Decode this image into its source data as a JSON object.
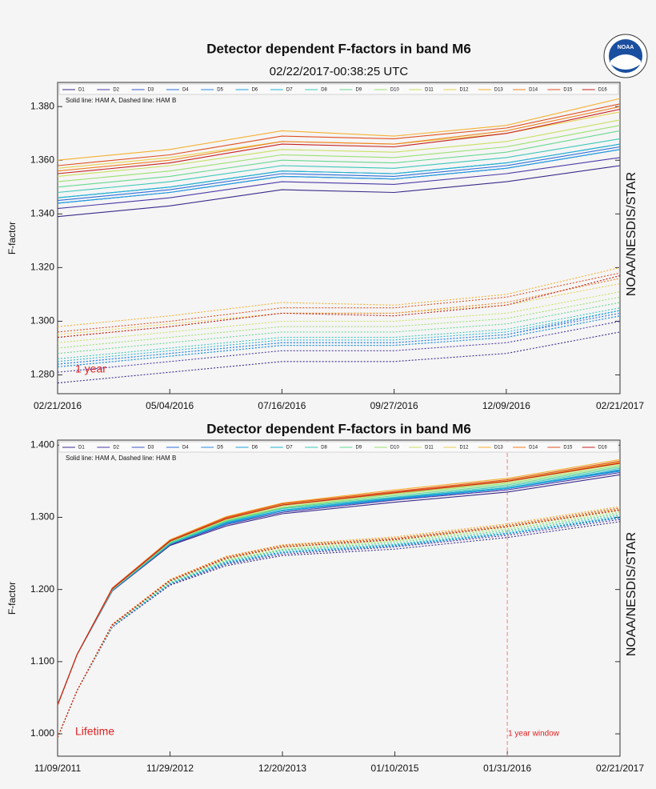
{
  "logo": "NOAA",
  "chart_data": [
    {
      "type": "line",
      "title": "Detector dependent F-factors in band M6",
      "subtitle": "02/22/2017-00:38:25 UTC",
      "ylabel": "F-factor",
      "side_label": "NOAA/NESDIS/STAR",
      "legend_note": "Solid line: HAM A, Dashed line: HAM B",
      "annotation": "1 year",
      "annotation_color": "#e02020",
      "x": [
        "02/21/2016",
        "05/04/2016",
        "07/16/2016",
        "09/27/2016",
        "12/09/2016",
        "02/21/2017"
      ],
      "xlim": [
        "02/21/2016",
        "02/21/2017"
      ],
      "xticks": [
        "02/21/2016",
        "05/04/2016",
        "07/16/2016",
        "09/27/2016",
        "12/09/2016",
        "02/21/2017"
      ],
      "ylim": [
        1.273,
        1.389
      ],
      "yticks": [
        {
          "value": 1.28,
          "label": "1.280"
        },
        {
          "value": 1.3,
          "label": "1.300"
        },
        {
          "value": 1.32,
          "label": "1.320"
        },
        {
          "value": 1.34,
          "label": "1.340"
        },
        {
          "value": 1.36,
          "label": "1.360"
        },
        {
          "value": 1.38,
          "label": "1.380"
        }
      ],
      "series": [
        {
          "name": "D1",
          "color": "#3a2a8a",
          "ham_a": [
            1.339,
            1.343,
            1.349,
            1.348,
            1.352,
            1.358
          ],
          "ham_b": [
            1.277,
            1.281,
            1.285,
            1.285,
            1.288,
            1.296
          ]
        },
        {
          "name": "D2",
          "color": "#4b3aa8",
          "ham_a": [
            1.342,
            1.346,
            1.352,
            1.351,
            1.355,
            1.361
          ],
          "ham_b": [
            1.281,
            1.285,
            1.289,
            1.289,
            1.292,
            1.3
          ]
        },
        {
          "name": "D3",
          "color": "#3c55c8",
          "ham_a": [
            1.344,
            1.348,
            1.354,
            1.353,
            1.357,
            1.364
          ],
          "ham_b": [
            1.283,
            1.287,
            1.291,
            1.291,
            1.294,
            1.302
          ]
        },
        {
          "name": "D4",
          "color": "#2c6fdc",
          "ham_a": [
            1.345,
            1.349,
            1.355,
            1.354,
            1.358,
            1.365
          ],
          "ham_b": [
            1.284,
            1.288,
            1.292,
            1.292,
            1.295,
            1.303
          ]
        },
        {
          "name": "D5",
          "color": "#2a8ae6",
          "ham_a": [
            1.346,
            1.35,
            1.356,
            1.355,
            1.359,
            1.366
          ],
          "ham_b": [
            1.284,
            1.288,
            1.292,
            1.292,
            1.295,
            1.304
          ]
        },
        {
          "name": "D6",
          "color": "#1fa0e0",
          "ham_a": [
            1.344,
            1.348,
            1.354,
            1.353,
            1.357,
            1.364
          ],
          "ham_b": [
            1.283,
            1.287,
            1.291,
            1.291,
            1.294,
            1.302
          ]
        },
        {
          "name": "D7",
          "color": "#22b4d0",
          "ham_a": [
            1.346,
            1.35,
            1.356,
            1.355,
            1.359,
            1.366
          ],
          "ham_b": [
            1.285,
            1.289,
            1.293,
            1.293,
            1.296,
            1.304
          ]
        },
        {
          "name": "D8",
          "color": "#3cc8b8",
          "ham_a": [
            1.348,
            1.352,
            1.358,
            1.357,
            1.361,
            1.368
          ],
          "ham_b": [
            1.286,
            1.29,
            1.294,
            1.294,
            1.297,
            1.305
          ]
        },
        {
          "name": "D9",
          "color": "#66d890",
          "ham_a": [
            1.35,
            1.354,
            1.36,
            1.359,
            1.363,
            1.371
          ],
          "ham_b": [
            1.288,
            1.292,
            1.296,
            1.296,
            1.299,
            1.307
          ]
        },
        {
          "name": "D10",
          "color": "#9ae070",
          "ham_a": [
            1.352,
            1.356,
            1.362,
            1.361,
            1.365,
            1.373
          ],
          "ham_b": [
            1.29,
            1.294,
            1.298,
            1.298,
            1.301,
            1.309
          ]
        },
        {
          "name": "D11",
          "color": "#c8e060",
          "ham_a": [
            1.354,
            1.358,
            1.364,
            1.363,
            1.367,
            1.375
          ],
          "ham_b": [
            1.292,
            1.296,
            1.3,
            1.3,
            1.303,
            1.311
          ]
        },
        {
          "name": "D12",
          "color": "#e8d050",
          "ham_a": [
            1.357,
            1.361,
            1.367,
            1.366,
            1.37,
            1.378
          ],
          "ham_b": [
            1.295,
            1.299,
            1.303,
            1.303,
            1.306,
            1.314
          ]
        },
        {
          "name": "D13",
          "color": "#f5b030",
          "ham_a": [
            1.36,
            1.364,
            1.371,
            1.369,
            1.373,
            1.383
          ],
          "ham_b": [
            1.298,
            1.302,
            1.307,
            1.306,
            1.31,
            1.32
          ]
        },
        {
          "name": "D14",
          "color": "#f08020",
          "ham_a": [
            1.356,
            1.36,
            1.367,
            1.366,
            1.371,
            1.38
          ],
          "ham_b": [
            1.294,
            1.298,
            1.303,
            1.303,
            1.307,
            1.316
          ]
        },
        {
          "name": "D15",
          "color": "#e05020",
          "ham_a": [
            1.358,
            1.362,
            1.369,
            1.368,
            1.372,
            1.381
          ],
          "ham_b": [
            1.296,
            1.3,
            1.305,
            1.305,
            1.309,
            1.318
          ]
        },
        {
          "name": "D16",
          "color": "#c82020",
          "ham_a": [
            1.355,
            1.359,
            1.366,
            1.365,
            1.37,
            1.379
          ],
          "ham_b": [
            1.294,
            1.298,
            1.303,
            1.302,
            1.306,
            1.317
          ]
        }
      ]
    },
    {
      "type": "line",
      "title": "Detector dependent F-factors in band M6",
      "ylabel": "F-factor",
      "side_label": "NOAA/NESDIS/STAR",
      "legend_note": "Solid line: HAM A, Dashed line: HAM B",
      "annotation": "Lifetime",
      "annotation_color": "#e02020",
      "vline": "01/31/2016",
      "vline_label": "1 year window",
      "x": [
        "11/09/2011",
        "01/15/2012",
        "05/15/2012",
        "11/29/2012",
        "06/10/2013",
        "12/20/2013",
        "01/10/2015",
        "01/31/2016",
        "02/21/2017"
      ],
      "xlim": [
        "11/09/2011",
        "02/21/2017"
      ],
      "xticks": [
        "11/09/2011",
        "11/29/2012",
        "12/20/2013",
        "01/10/2015",
        "01/31/2016",
        "02/21/2017"
      ],
      "ylim": [
        0.969,
        1.407
      ],
      "yticks": [
        {
          "value": 1.0,
          "label": "1.000"
        },
        {
          "value": 1.1,
          "label": "1.100"
        },
        {
          "value": 1.2,
          "label": "1.200"
        },
        {
          "value": 1.3,
          "label": "1.300"
        },
        {
          "value": 1.4,
          "label": "1.400"
        }
      ],
      "series": [
        {
          "name": "D1",
          "color": "#3a2a8a",
          "ham_a": [
            1.04,
            1.11,
            1.198,
            1.261,
            1.288,
            1.305,
            1.321,
            1.335,
            1.359
          ],
          "ham_b": [
            0.995,
            1.06,
            1.148,
            1.206,
            1.233,
            1.247,
            1.256,
            1.272,
            1.294
          ]
        },
        {
          "name": "D2",
          "color": "#4b3aa8",
          "ham_a": [
            1.04,
            1.11,
            1.198,
            1.262,
            1.29,
            1.307,
            1.324,
            1.338,
            1.362
          ],
          "ham_b": [
            0.995,
            1.06,
            1.148,
            1.207,
            1.235,
            1.249,
            1.259,
            1.275,
            1.297
          ]
        },
        {
          "name": "D3",
          "color": "#3c55c8",
          "ham_a": [
            1.04,
            1.11,
            1.199,
            1.263,
            1.291,
            1.309,
            1.325,
            1.34,
            1.364
          ],
          "ham_b": [
            0.995,
            1.06,
            1.149,
            1.208,
            1.236,
            1.251,
            1.26,
            1.277,
            1.299
          ]
        },
        {
          "name": "D4",
          "color": "#2c6fdc",
          "ham_a": [
            1.04,
            1.11,
            1.199,
            1.263,
            1.292,
            1.309,
            1.326,
            1.34,
            1.365
          ],
          "ham_b": [
            0.995,
            1.06,
            1.149,
            1.208,
            1.237,
            1.251,
            1.261,
            1.277,
            1.3
          ]
        },
        {
          "name": "D5",
          "color": "#2a8ae6",
          "ham_a": [
            1.04,
            1.11,
            1.199,
            1.263,
            1.293,
            1.31,
            1.327,
            1.341,
            1.366
          ],
          "ham_b": [
            0.995,
            1.06,
            1.149,
            1.208,
            1.238,
            1.252,
            1.262,
            1.278,
            1.301
          ]
        },
        {
          "name": "D6",
          "color": "#1fa0e0",
          "ham_a": [
            1.04,
            1.11,
            1.199,
            1.263,
            1.291,
            1.309,
            1.325,
            1.34,
            1.364
          ],
          "ham_b": [
            0.995,
            1.06,
            1.149,
            1.208,
            1.236,
            1.251,
            1.26,
            1.277,
            1.299
          ]
        },
        {
          "name": "D7",
          "color": "#22b4d0",
          "ham_a": [
            1.04,
            1.11,
            1.199,
            1.263,
            1.293,
            1.31,
            1.327,
            1.341,
            1.366
          ],
          "ham_b": [
            0.995,
            1.06,
            1.149,
            1.208,
            1.238,
            1.252,
            1.262,
            1.278,
            1.301
          ]
        },
        {
          "name": "D8",
          "color": "#3cc8b8",
          "ham_a": [
            1.04,
            1.11,
            1.2,
            1.264,
            1.294,
            1.312,
            1.328,
            1.343,
            1.368
          ],
          "ham_b": [
            0.995,
            1.06,
            1.15,
            1.209,
            1.239,
            1.254,
            1.263,
            1.28,
            1.303
          ]
        },
        {
          "name": "D9",
          "color": "#66d890",
          "ham_a": [
            1.04,
            1.11,
            1.2,
            1.265,
            1.295,
            1.313,
            1.33,
            1.345,
            1.37
          ],
          "ham_b": [
            0.995,
            1.06,
            1.15,
            1.21,
            1.24,
            1.255,
            1.265,
            1.282,
            1.305
          ]
        },
        {
          "name": "D10",
          "color": "#9ae070",
          "ham_a": [
            1.04,
            1.11,
            1.2,
            1.266,
            1.296,
            1.314,
            1.332,
            1.347,
            1.372
          ],
          "ham_b": [
            0.995,
            1.06,
            1.15,
            1.211,
            1.241,
            1.256,
            1.267,
            1.284,
            1.307
          ]
        },
        {
          "name": "D11",
          "color": "#c8e060",
          "ham_a": [
            1.04,
            1.11,
            1.201,
            1.267,
            1.297,
            1.316,
            1.333,
            1.349,
            1.374
          ],
          "ham_b": [
            0.995,
            1.06,
            1.151,
            1.212,
            1.242,
            1.258,
            1.268,
            1.286,
            1.309
          ]
        },
        {
          "name": "D12",
          "color": "#e8d050",
          "ham_a": [
            1.04,
            1.11,
            1.201,
            1.268,
            1.299,
            1.318,
            1.336,
            1.351,
            1.377
          ],
          "ham_b": [
            0.995,
            1.06,
            1.151,
            1.213,
            1.244,
            1.26,
            1.271,
            1.288,
            1.312
          ]
        },
        {
          "name": "D13",
          "color": "#f5b030",
          "ham_a": [
            1.04,
            1.11,
            1.202,
            1.269,
            1.301,
            1.32,
            1.338,
            1.354,
            1.38
          ],
          "ham_b": [
            0.995,
            1.06,
            1.152,
            1.214,
            1.246,
            1.262,
            1.273,
            1.291,
            1.315
          ]
        },
        {
          "name": "D14",
          "color": "#f08020",
          "ham_a": [
            1.04,
            1.11,
            1.201,
            1.267,
            1.299,
            1.317,
            1.335,
            1.35,
            1.376
          ],
          "ham_b": [
            0.995,
            1.06,
            1.151,
            1.212,
            1.244,
            1.259,
            1.27,
            1.287,
            1.311
          ]
        },
        {
          "name": "D15",
          "color": "#e05020",
          "ham_a": [
            1.04,
            1.11,
            1.202,
            1.268,
            1.3,
            1.319,
            1.336,
            1.352,
            1.378
          ],
          "ham_b": [
            0.995,
            1.06,
            1.152,
            1.213,
            1.245,
            1.261,
            1.271,
            1.289,
            1.313
          ]
        },
        {
          "name": "D16",
          "color": "#c82020",
          "ham_a": [
            1.04,
            1.11,
            1.201,
            1.267,
            1.298,
            1.317,
            1.334,
            1.35,
            1.375
          ],
          "ham_b": [
            0.995,
            1.06,
            1.151,
            1.212,
            1.243,
            1.259,
            1.269,
            1.287,
            1.31
          ]
        }
      ]
    }
  ]
}
